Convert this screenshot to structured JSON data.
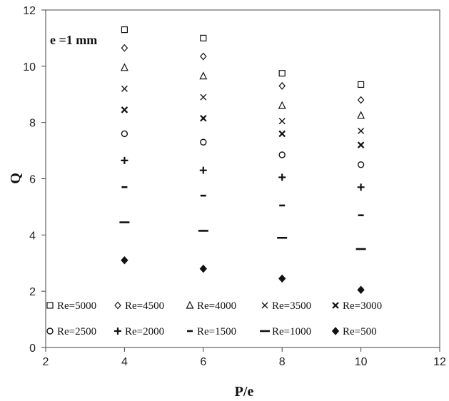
{
  "chart_data": {
    "type": "scatter",
    "title": "",
    "xlabel": "P/e",
    "ylabel": "Q",
    "annotation": "e =1 mm",
    "xlim": [
      2,
      12
    ],
    "ylim": [
      0,
      12
    ],
    "xticks": [
      "2",
      "4",
      "6",
      "8",
      "10",
      "12"
    ],
    "yticks": [
      "0",
      "2",
      "4",
      "6",
      "8",
      "10",
      "12"
    ],
    "grid": false,
    "legend_position": "bottom-inside",
    "x": [
      4,
      6,
      8,
      10
    ],
    "series": [
      {
        "name": "Re=5000",
        "marker": "square",
        "values": [
          11.3,
          11.0,
          9.75,
          9.35
        ]
      },
      {
        "name": "Re=4500",
        "marker": "diamond",
        "values": [
          10.65,
          10.35,
          9.3,
          8.8
        ]
      },
      {
        "name": "Re=4000",
        "marker": "triangle",
        "values": [
          9.95,
          9.65,
          8.6,
          8.25
        ]
      },
      {
        "name": "Re=3500",
        "marker": "x",
        "values": [
          9.2,
          8.9,
          8.05,
          7.7
        ]
      },
      {
        "name": "Re=3000",
        "marker": "bold-x",
        "values": [
          8.45,
          8.15,
          7.6,
          7.2
        ]
      },
      {
        "name": "Re=2500",
        "marker": "circle",
        "values": [
          7.6,
          7.3,
          6.85,
          6.5
        ]
      },
      {
        "name": "Re=2000",
        "marker": "plus",
        "values": [
          6.65,
          6.3,
          6.05,
          5.7
        ]
      },
      {
        "name": "Re=1500",
        "marker": "short-dash",
        "values": [
          5.7,
          5.4,
          5.05,
          4.7
        ]
      },
      {
        "name": "Re=1000",
        "marker": "long-dash",
        "values": [
          4.45,
          4.15,
          3.9,
          3.5
        ]
      },
      {
        "name": "Re=500",
        "marker": "filled-diamond",
        "values": [
          3.1,
          2.8,
          2.45,
          2.05
        ]
      }
    ]
  }
}
